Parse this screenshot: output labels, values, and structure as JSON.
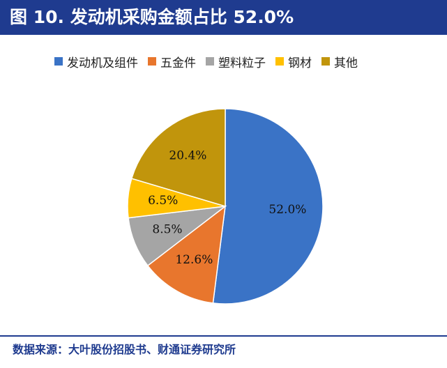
{
  "header": {
    "title": "图 10. 发动机采购金额占比 52.0%"
  },
  "chart_data": {
    "type": "pie",
    "title": "图 10. 发动机采购金额占比 52.0%",
    "series": [
      {
        "name": "发动机及组件",
        "value": 52.0,
        "label": "52.0%",
        "color": "#3a73c6"
      },
      {
        "name": "五金件",
        "value": 12.6,
        "label": "12.6%",
        "color": "#e8762d"
      },
      {
        "name": "塑料粒子",
        "value": 8.5,
        "label": "8.5%",
        "color": "#a5a5a5"
      },
      {
        "name": "钢材",
        "value": 6.5,
        "label": "6.5%",
        "color": "#ffc000"
      },
      {
        "name": "其他",
        "value": 20.4,
        "label": "20.4%",
        "color": "#c1950c"
      }
    ],
    "legend_position": "top"
  },
  "footer": {
    "source": "数据来源：大叶股份招股书、财通证券研究所"
  }
}
